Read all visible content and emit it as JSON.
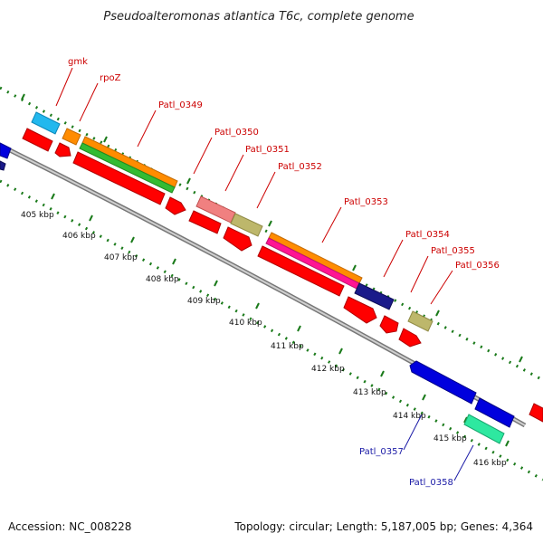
{
  "title": "Pseudoalteromonas atlantica T6c, complete genome",
  "footer": {
    "accession": "Accession: NC_008228",
    "topology": "Topology: circular; Length: 5,187,005 bp; Genes: 4,364"
  },
  "ticks": [
    "405 kbp",
    "406 kbp",
    "407 kbp",
    "408 kbp",
    "409 kbp",
    "410 kbp",
    "411 kbp",
    "412 kbp",
    "413 kbp",
    "414 kbp",
    "415 kbp",
    "416 kbp"
  ],
  "gene_labels": {
    "gmk": "gmk",
    "rpoZ": "rpoZ",
    "patl_0349": "Patl_0349",
    "patl_0350": "Patl_0350",
    "patl_0351": "Patl_0351",
    "patl_0352": "Patl_0352",
    "patl_0353": "Patl_0353",
    "patl_0354": "Patl_0354",
    "patl_0355": "Patl_0355",
    "patl_0356": "Patl_0356",
    "patl_0357": "Patl_0357",
    "patl_0358": "Patl_0358"
  },
  "colors": {
    "backbone": "#8c8c8c",
    "forward_strand": "#ff0000",
    "reverse_strand": "#0000dd",
    "tick_marks": "#1a7a1a",
    "label_forward": "#cc0000",
    "label_reverse": "#1a1aa6"
  }
}
